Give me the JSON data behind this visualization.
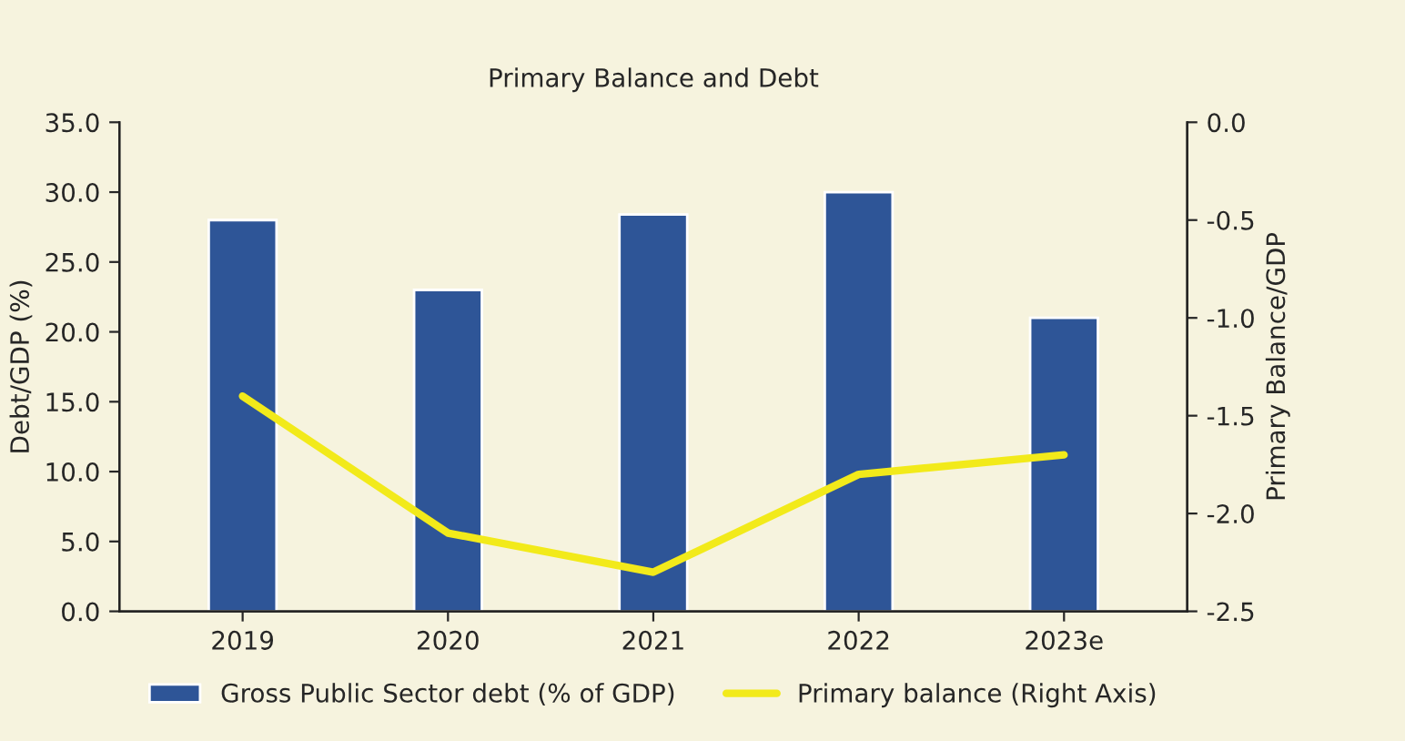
{
  "chart_data": {
    "type": "bar",
    "title": "Primary Balance and Debt",
    "ylabel": "Debt/GDP (%)",
    "y2label": "Primary Balance/GDP",
    "categories": [
      "2019",
      "2020",
      "2021",
      "2022",
      "2023e"
    ],
    "series": [
      {
        "name": "Gross Public Sector debt (% of GDP)",
        "color": "#2e5597",
        "values": [
          28.0,
          23.0,
          28.4,
          30.0,
          21.0
        ]
      },
      {
        "name": "Primary balance (Right Axis)",
        "type": "line",
        "axis": "y2",
        "color": "#f2ea1a",
        "values": [
          -1.4,
          -2.1,
          -2.3,
          -1.8,
          -1.7
        ]
      }
    ],
    "ylim": [
      0,
      35
    ],
    "yticks": [
      {
        "value": 0,
        "label": "0.0"
      },
      {
        "value": 5,
        "label": "5.0"
      },
      {
        "value": 10,
        "label": "10.0"
      },
      {
        "value": 15,
        "label": "15.0"
      },
      {
        "value": 20,
        "label": "20.0"
      },
      {
        "value": 25,
        "label": "25.0"
      },
      {
        "value": 30,
        "label": "30.0"
      },
      {
        "value": 35,
        "label": "35.0"
      }
    ],
    "y2lim": [
      -2.5,
      0
    ],
    "y2ticks": [
      {
        "value": -2.5,
        "label": "-2.5"
      },
      {
        "value": -2,
        "label": "-2.0"
      },
      {
        "value": -1.5,
        "label": "-1.5"
      },
      {
        "value": -1,
        "label": "-1.0"
      },
      {
        "value": -0.5,
        "label": "-0.5"
      },
      {
        "value": 0,
        "label": "0.0"
      }
    ],
    "grid": false,
    "legend": "bottom"
  }
}
